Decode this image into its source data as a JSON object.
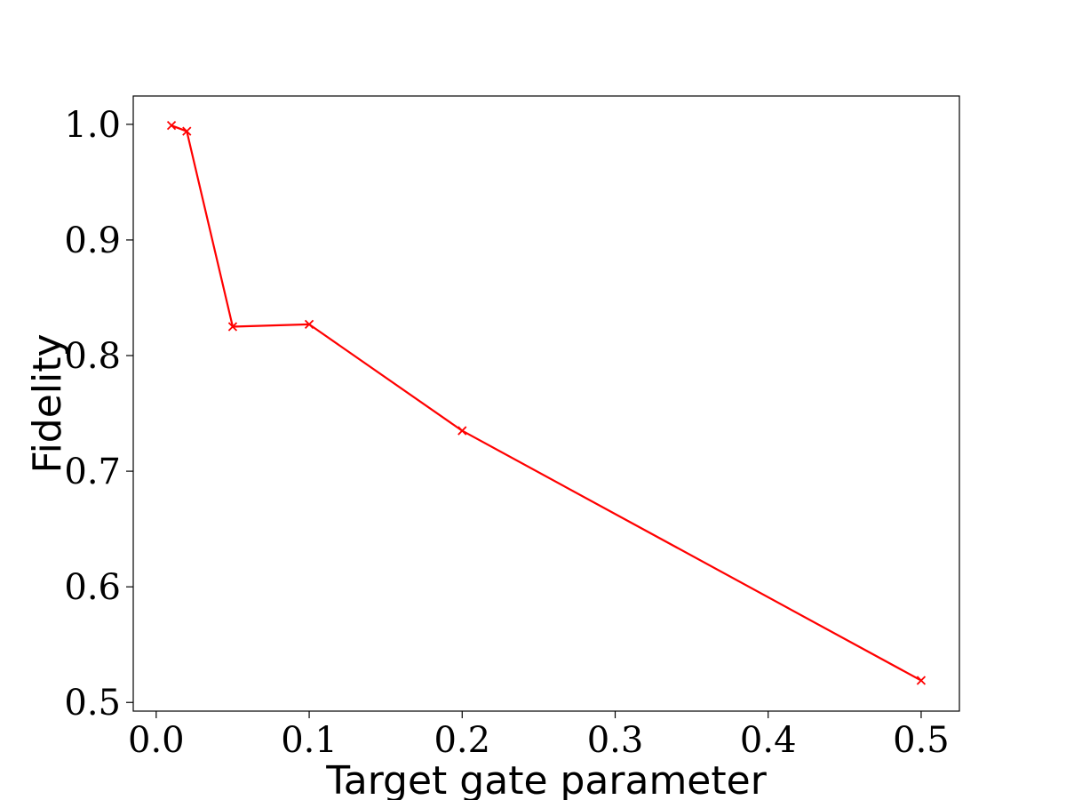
{
  "chart_data": {
    "type": "line",
    "xlabel": "Target gate parameter",
    "ylabel": "Fidelity",
    "xlim": [
      -0.015,
      0.525
    ],
    "ylim": [
      0.4925,
      1.0245
    ],
    "xticks": [
      0.0,
      0.1,
      0.2,
      0.3,
      0.4,
      0.5
    ],
    "xtick_labels": [
      "0.0",
      "0.1",
      "0.2",
      "0.3",
      "0.4",
      "0.5"
    ],
    "yticks": [
      0.5,
      0.6,
      0.7,
      0.8,
      0.9,
      1.0
    ],
    "ytick_labels": [
      "0.5",
      "0.6",
      "0.7",
      "0.8",
      "0.9",
      "1.0"
    ],
    "grid": false,
    "colors": {
      "line": "#ff0000"
    },
    "marker": "x",
    "series": [
      {
        "x": [
          0.01,
          0.02,
          0.05,
          0.1,
          0.2,
          0.5
        ],
        "values": [
          0.999,
          0.994,
          0.825,
          0.827,
          0.735,
          0.519
        ]
      }
    ]
  }
}
